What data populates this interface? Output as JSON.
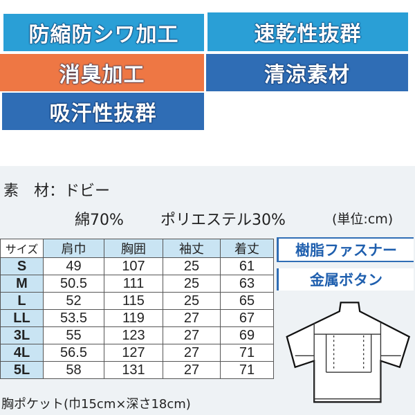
{
  "badges": [
    {
      "label": "防縮防シワ加工",
      "color": "#2a9fd6"
    },
    {
      "label": "速乾性抜群",
      "color": "#2a9fd6"
    },
    {
      "label": "消臭加工",
      "color": "#ee7744"
    },
    {
      "label": "清涼素材",
      "color": "#2f6db5"
    },
    {
      "label": "吸汗性抜群",
      "color": "#2f6db5"
    }
  ],
  "material": {
    "label": "素　材：ドビー",
    "composition_cotton": "綿70%",
    "composition_poly": "ポリエステル30%",
    "unit": "(単位:cm)"
  },
  "size_table": {
    "headers": [
      "サイズ",
      "肩巾",
      "胸囲",
      "袖丈",
      "着丈"
    ],
    "rows": [
      [
        "S",
        "49",
        "107",
        "25",
        "61"
      ],
      [
        "M",
        "50.5",
        "111",
        "25",
        "63"
      ],
      [
        "L",
        "52",
        "115",
        "25",
        "65"
      ],
      [
        "LL",
        "53.5",
        "119",
        "27",
        "67"
      ],
      [
        "3L",
        "55",
        "123",
        "27",
        "69"
      ],
      [
        "4L",
        "56.5",
        "127",
        "27",
        "71"
      ],
      [
        "5L",
        "58",
        "131",
        "27",
        "71"
      ]
    ]
  },
  "options": [
    "樹脂ファスナー",
    "金属ボタン"
  ],
  "footnote": "胸ポケット(巾15cm×深さ18cm)"
}
